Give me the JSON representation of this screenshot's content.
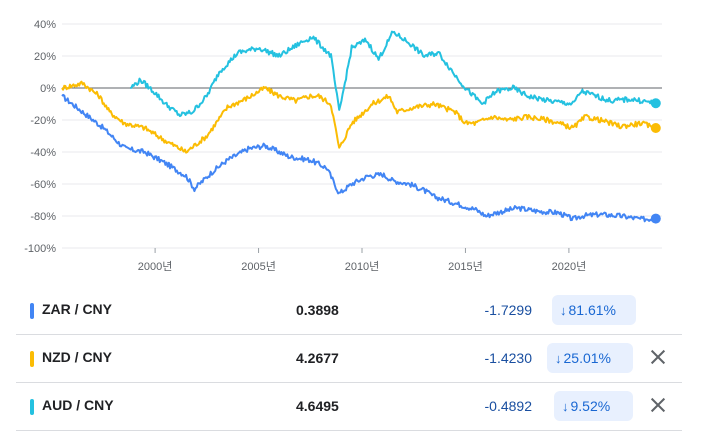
{
  "chart_data": {
    "type": "line",
    "ylim": [
      -100,
      40
    ],
    "xlim": [
      1995.5,
      2024.5
    ],
    "y_ticks": [
      40,
      20,
      0,
      -20,
      -40,
      -60,
      -80,
      -100
    ],
    "y_tick_labels": [
      "40%",
      "20%",
      "0%",
      "-20%",
      "-40%",
      "-60%",
      "-80%",
      "-100%"
    ],
    "x_ticks": [
      2000,
      2005,
      2010,
      2015,
      2020
    ],
    "x_tick_labels": [
      "2000년",
      "2005년",
      "2010년",
      "2015년",
      "2020년"
    ],
    "grid": "horizontal",
    "baseline": 0,
    "series": [
      {
        "name": "ZAR / CNY",
        "color": "#4285f4",
        "x": [
          1995.5,
          1996.5,
          1997.5,
          1998.3,
          1998.6,
          1999.5,
          2000.5,
          2001.5,
          2001.9,
          2002.8,
          2003.5,
          2004.5,
          2005.3,
          2006.0,
          2006.5,
          2007.5,
          2008.3,
          2008.9,
          2009.5,
          2010.3,
          2011.0,
          2011.5,
          2012.3,
          2013.0,
          2013.5,
          2014.5,
          2015.5,
          2016.0,
          2016.5,
          2017.5,
          2018.5,
          2019.5,
          2020.2,
          2020.6,
          2021.5,
          2022.5,
          2023.5,
          2024.2
        ],
        "values": [
          -5,
          -15,
          -25,
          -35,
          -38,
          -40,
          -47,
          -55,
          -63,
          -52,
          -45,
          -38,
          -36,
          -40,
          -43,
          -45,
          -50,
          -66,
          -60,
          -55,
          -54,
          -58,
          -60,
          -64,
          -68,
          -72,
          -76,
          -80,
          -78,
          -75,
          -77,
          -78,
          -82,
          -80,
          -79,
          -80,
          -82,
          -81.61
        ]
      },
      {
        "name": "NZD / CNY",
        "color": "#fbbc04",
        "x": [
          1995.5,
          1996.5,
          1997.3,
          1997.8,
          1998.5,
          1999.5,
          2000.5,
          2001.5,
          2002.5,
          2003.5,
          2004.5,
          2005.3,
          2006.0,
          2006.8,
          2007.5,
          2007.9,
          2008.5,
          2008.9,
          2009.5,
          2010.5,
          2011.3,
          2011.7,
          2012.5,
          2013.5,
          2014.5,
          2015.0,
          2015.5,
          2016.3,
          2017.0,
          2018.0,
          2019.0,
          2020.2,
          2020.8,
          2021.5,
          2022.5,
          2023.5,
          2024.2
        ],
        "values": [
          0,
          3,
          -5,
          -15,
          -22,
          -25,
          -33,
          -40,
          -30,
          -12,
          -6,
          0,
          -5,
          -8,
          -5,
          -5,
          -10,
          -38,
          -22,
          -10,
          -5,
          -15,
          -12,
          -10,
          -15,
          -22,
          -22,
          -18,
          -20,
          -18,
          -20,
          -25,
          -18,
          -20,
          -24,
          -22,
          -25.01
        ]
      },
      {
        "name": "AUD / CNY",
        "color": "#24c1e0",
        "x": [
          1998.8,
          1999.3,
          2000.0,
          2000.5,
          2001.2,
          2001.8,
          2002.5,
          2003.1,
          2004.0,
          2005.0,
          2006.0,
          2007.0,
          2007.6,
          2008.5,
          2008.9,
          2009.5,
          2010.2,
          2010.8,
          2011.5,
          2012.3,
          2013.0,
          2013.7,
          2014.5,
          2015.0,
          2015.8,
          2016.5,
          2017.3,
          2018.0,
          2019.0,
          2020.2,
          2020.6,
          2021.3,
          2022.0,
          2023.0,
          2024.2
        ],
        "values": [
          0,
          5,
          -3,
          -10,
          -17,
          -15,
          -5,
          10,
          22,
          25,
          20,
          28,
          32,
          20,
          -15,
          25,
          30,
          18,
          35,
          28,
          20,
          22,
          8,
          0,
          -10,
          -2,
          0,
          -5,
          -8,
          -10,
          -2,
          -5,
          -8,
          -7,
          -9.52
        ]
      }
    ]
  },
  "rows": [
    {
      "pair": "ZAR / CNY",
      "color": "#4285f4",
      "price": "0.3898",
      "change": "-1.7299",
      "pct": "81.61%",
      "arrow": "↓",
      "removable": false
    },
    {
      "pair": "NZD / CNY",
      "color": "#fbbc04",
      "price": "4.2677",
      "change": "-1.4230",
      "pct": "25.01%",
      "arrow": "↓",
      "removable": true
    },
    {
      "pair": "AUD / CNY",
      "color": "#24c1e0",
      "price": "4.6495",
      "change": "-0.4892",
      "pct": "9.52%",
      "arrow": "↓",
      "removable": true
    }
  ]
}
